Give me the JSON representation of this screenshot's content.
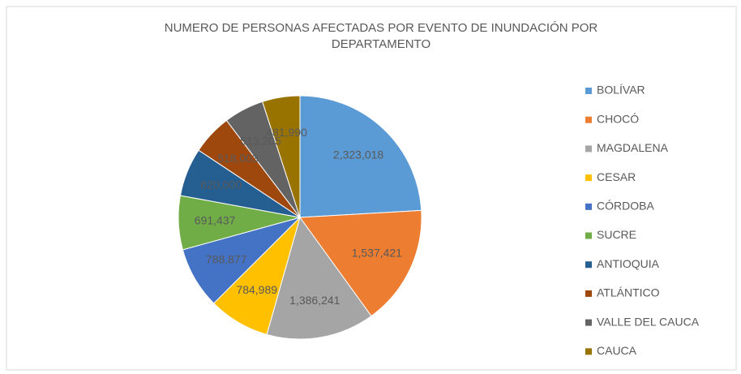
{
  "chart_data": {
    "type": "pie",
    "title": "NUMERO DE PERSONAS AFECTADAS POR EVENTO DE INUNDACIÓN POR DEPARTAMENTO",
    "categories": [
      "BOLÍVAR",
      "CHOCÓ",
      "MAGDALENA",
      "CESAR",
      "CÓRDOBA",
      "SUCRE",
      "ANTIOQUIA",
      "ATLÁNTICO",
      "VALLE DEL CAUCA",
      "CAUCA"
    ],
    "values": [
      2323018,
      1537421,
      1386241,
      784989,
      788877,
      691437,
      620000,
      518003,
      513205,
      481990
    ],
    "value_labels": [
      "2,323,018",
      "1,537,421",
      "1,386,241",
      "784,989",
      "788,877",
      "691,437",
      "620,000",
      "518,003",
      "513,205",
      "481,990"
    ],
    "colors": [
      "#5b9bd5",
      "#ed7d31",
      "#a5a5a5",
      "#ffc000",
      "#4472c4",
      "#70ad47",
      "#255e91",
      "#9e480e",
      "#636363",
      "#997300"
    ],
    "legend": "right"
  }
}
